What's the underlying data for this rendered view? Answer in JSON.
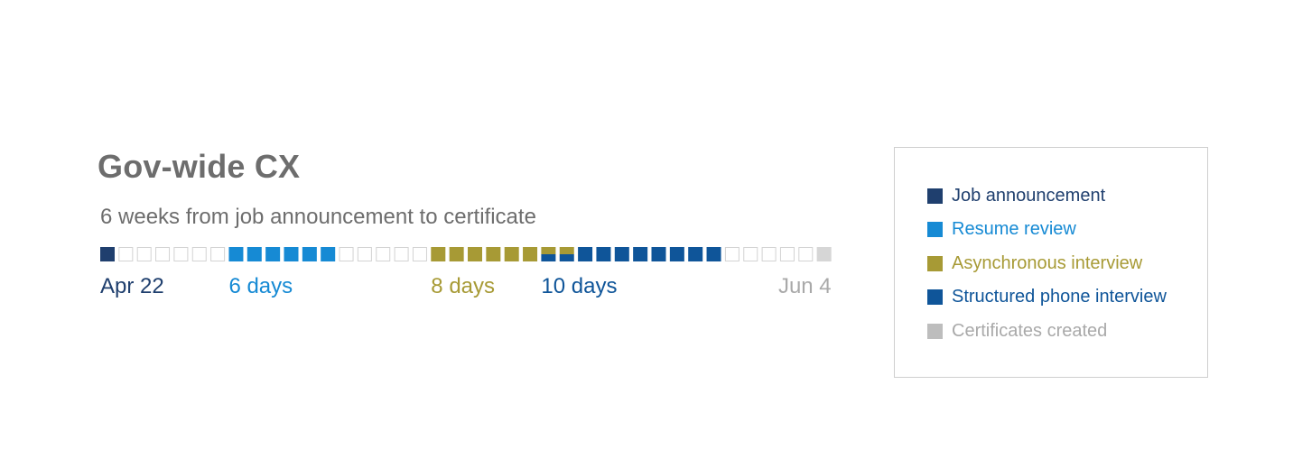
{
  "chart_data": {
    "type": "table",
    "title": "Gov-wide CX",
    "subtitle": "6 weeks from job announcement to certificate",
    "unit": "day",
    "start_label": "Apr 22",
    "end_label": "Jun 4",
    "phases": [
      {
        "name": "Job announcement",
        "color": "#1f3f6e",
        "text_color": "#1f3f6e",
        "start_day": 0,
        "days": 1
      },
      {
        "name": "Resume review",
        "color": "#168ad4",
        "text_color": "#168ad4",
        "start_day": 7,
        "days": 6,
        "duration_label": "6 days"
      },
      {
        "name": "Asynchronous interview",
        "color": "#a79a35",
        "text_color": "#a79a35",
        "start_day": 18,
        "days": 8,
        "duration_label": "8 days"
      },
      {
        "name": "Structured phone interview",
        "color": "#0f5599",
        "text_color": "#0f5599",
        "start_day": 24,
        "days": 10,
        "duration_label": "10 days"
      },
      {
        "name": "Certificates created",
        "color": "#d6d6d6",
        "text_color": "#a9a9a9",
        "start_day": 39,
        "days": 1
      }
    ],
    "total_days": 40,
    "empty_color": "#d3d3d3"
  },
  "legend": {
    "items": [
      {
        "label": "Job announcement",
        "color": "#1f3f6e",
        "text_color": "#1f3f6e"
      },
      {
        "label": "Resume review",
        "color": "#168ad4",
        "text_color": "#168ad4"
      },
      {
        "label": "Asynchronous interview",
        "color": "#a79a35",
        "text_color": "#a79a35"
      },
      {
        "label": "Structured phone interview",
        "color": "#0f5599",
        "text_color": "#0f5599"
      },
      {
        "label": "Certificates created",
        "color": "#bdbdbd",
        "text_color": "#a9a9a9"
      }
    ]
  }
}
